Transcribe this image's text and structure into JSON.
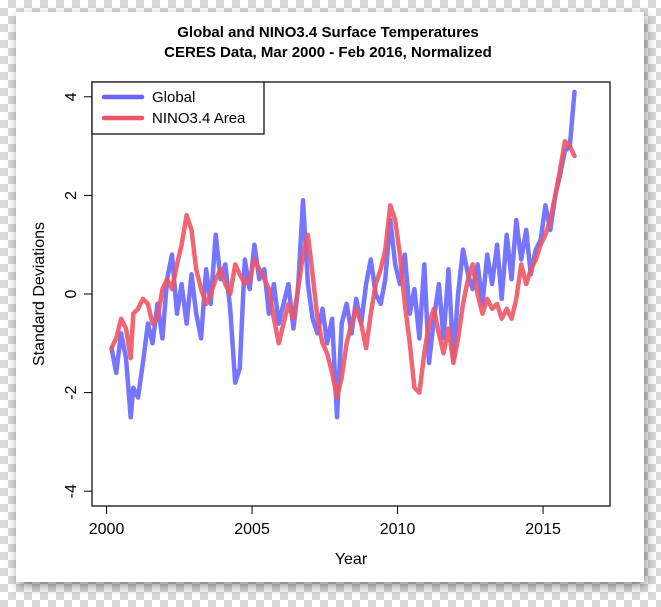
{
  "chart_data": {
    "type": "line",
    "title": "Global and NINO3.4 Surface Temperatures",
    "subtitle": "CERES Data, Mar 2000 - Feb 2016, Normalized",
    "xlabel": "Year",
    "ylabel": "Standard Deviations",
    "xlim": [
      1999.5,
      2017.3
    ],
    "ylim": [
      -4.3,
      4.3
    ],
    "xticks": [
      2000,
      2005,
      2010,
      2015
    ],
    "xtick_labels": [
      "2000",
      "2005",
      "2010",
      "2015"
    ],
    "yticks": [
      -4,
      -2,
      0,
      2,
      4
    ],
    "ytick_labels": [
      "-4",
      "-2",
      "0",
      "2",
      "4"
    ],
    "legend": [
      "Global",
      "NINO3.4 Area"
    ],
    "legend_position": "top-left",
    "series": [
      {
        "name": "Global",
        "color": "#6666ff",
        "x": [
          2000.17,
          2000.33,
          2000.5,
          2000.67,
          2000.83,
          2000.92,
          2001.08,
          2001.25,
          2001.42,
          2001.58,
          2001.75,
          2001.92,
          2002.08,
          2002.25,
          2002.42,
          2002.58,
          2002.75,
          2002.92,
          2003.08,
          2003.25,
          2003.42,
          2003.58,
          2003.75,
          2003.92,
          2004.08,
          2004.25,
          2004.42,
          2004.58,
          2004.75,
          2004.92,
          2005.08,
          2005.25,
          2005.42,
          2005.58,
          2005.75,
          2005.92,
          2006.08,
          2006.25,
          2006.42,
          2006.58,
          2006.75,
          2006.92,
          2007.08,
          2007.25,
          2007.42,
          2007.58,
          2007.75,
          2007.92,
          2008.08,
          2008.25,
          2008.42,
          2008.58,
          2008.75,
          2008.92,
          2009.08,
          2009.25,
          2009.42,
          2009.58,
          2009.75,
          2009.92,
          2010.08,
          2010.25,
          2010.42,
          2010.58,
          2010.75,
          2010.92,
          2011.08,
          2011.25,
          2011.42,
          2011.58,
          2011.75,
          2011.92,
          2012.08,
          2012.25,
          2012.42,
          2012.58,
          2012.75,
          2012.92,
          2013.08,
          2013.25,
          2013.42,
          2013.58,
          2013.75,
          2013.92,
          2014.08,
          2014.25,
          2014.42,
          2014.58,
          2014.75,
          2014.92,
          2015.08,
          2015.25,
          2015.42,
          2015.58,
          2015.75,
          2015.92,
          2016.08
        ],
        "y": [
          -1.1,
          -1.6,
          -0.8,
          -1.3,
          -2.5,
          -1.9,
          -2.1,
          -1.4,
          -0.6,
          -1.0,
          -0.2,
          -0.9,
          0.3,
          0.8,
          -0.4,
          0.2,
          -0.6,
          0.4,
          -0.4,
          -0.9,
          0.5,
          -0.2,
          1.2,
          0.3,
          0.6,
          -0.3,
          -1.8,
          -1.5,
          0.7,
          0.1,
          1.0,
          0.3,
          0.5,
          -0.4,
          0.2,
          -0.6,
          -0.2,
          0.2,
          -0.7,
          0.1,
          1.9,
          0.2,
          -0.5,
          -0.8,
          -0.3,
          -1.0,
          -0.5,
          -2.5,
          -0.6,
          -0.2,
          -0.8,
          -0.1,
          -0.6,
          0.2,
          0.7,
          0.0,
          -0.2,
          0.3,
          1.5,
          0.6,
          0.2,
          0.8,
          -0.4,
          0.1,
          -0.9,
          0.6,
          -1.4,
          -0.5,
          0.2,
          -0.9,
          0.5,
          -1.3,
          0.0,
          0.9,
          0.4,
          0.1,
          0.6,
          -0.2,
          0.8,
          0.2,
          1.0,
          -0.1,
          1.2,
          0.3,
          1.5,
          0.7,
          1.3,
          0.4,
          0.9,
          1.1,
          1.8,
          1.3,
          2.0,
          2.4,
          2.9,
          3.0,
          4.1
        ]
      },
      {
        "name": "NINO3.4 Area",
        "color": "#ee5566",
        "x": [
          2000.17,
          2000.33,
          2000.5,
          2000.67,
          2000.83,
          2000.92,
          2001.08,
          2001.25,
          2001.42,
          2001.58,
          2001.75,
          2001.92,
          2002.08,
          2002.25,
          2002.42,
          2002.58,
          2002.75,
          2002.92,
          2003.08,
          2003.25,
          2003.42,
          2003.58,
          2003.75,
          2003.92,
          2004.08,
          2004.25,
          2004.42,
          2004.58,
          2004.75,
          2004.92,
          2005.08,
          2005.25,
          2005.42,
          2005.58,
          2005.75,
          2005.92,
          2006.08,
          2006.25,
          2006.42,
          2006.58,
          2006.75,
          2006.92,
          2007.08,
          2007.25,
          2007.42,
          2007.58,
          2007.75,
          2007.92,
          2008.08,
          2008.25,
          2008.42,
          2008.58,
          2008.75,
          2008.92,
          2009.08,
          2009.25,
          2009.42,
          2009.58,
          2009.75,
          2009.92,
          2010.08,
          2010.25,
          2010.42,
          2010.58,
          2010.75,
          2010.92,
          2011.08,
          2011.25,
          2011.42,
          2011.58,
          2011.75,
          2011.92,
          2012.08,
          2012.25,
          2012.42,
          2012.58,
          2012.75,
          2012.92,
          2013.08,
          2013.25,
          2013.42,
          2013.58,
          2013.75,
          2013.92,
          2014.08,
          2014.25,
          2014.42,
          2014.58,
          2014.75,
          2014.92,
          2015.08,
          2015.25,
          2015.42,
          2015.58,
          2015.75,
          2015.92,
          2016.08
        ],
        "y": [
          -1.1,
          -0.9,
          -0.5,
          -0.7,
          -1.3,
          -0.4,
          -0.3,
          -0.1,
          -0.2,
          -0.6,
          -0.5,
          0.1,
          0.3,
          0.1,
          0.6,
          1.0,
          1.6,
          1.3,
          0.5,
          0.1,
          -0.2,
          0.0,
          0.3,
          0.5,
          0.2,
          0.0,
          0.6,
          0.4,
          0.2,
          0.3,
          0.7,
          0.5,
          0.3,
          0.1,
          -0.5,
          -1.0,
          -0.6,
          -0.2,
          -0.5,
          0.1,
          0.8,
          1.2,
          0.4,
          -0.5,
          -1.0,
          -1.2,
          -1.6,
          -2.1,
          -1.7,
          -1.0,
          -0.6,
          -0.3,
          -0.6,
          -1.1,
          -0.4,
          0.2,
          0.5,
          0.9,
          1.8,
          1.5,
          0.8,
          -0.2,
          -1.0,
          -1.9,
          -2.0,
          -1.2,
          -0.6,
          -0.3,
          -0.8,
          -1.2,
          -0.7,
          -1.4,
          -0.9,
          -0.2,
          0.3,
          0.6,
          0.0,
          -0.4,
          -0.1,
          -0.3,
          -0.2,
          -0.5,
          -0.3,
          -0.5,
          -0.1,
          0.6,
          0.2,
          0.5,
          0.7,
          1.0,
          1.2,
          1.5,
          2.0,
          2.5,
          3.1,
          3.0,
          2.8
        ]
      }
    ]
  }
}
